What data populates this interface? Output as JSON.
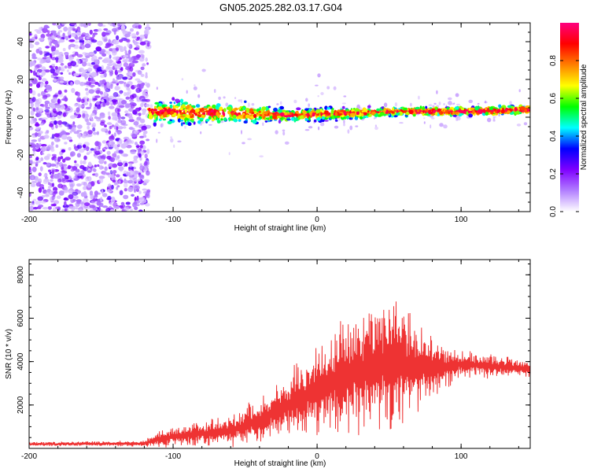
{
  "title": "GN05.2025.282.03.17.G04",
  "chart_data": [
    {
      "type": "heatmap",
      "name": "spectrogram",
      "xlabel": "Height of straight line (km)",
      "ylabel": "Frequency (Hz)",
      "xlim": [
        -200,
        148
      ],
      "ylim": [
        -50,
        50
      ],
      "xticks": [
        -200,
        -100,
        0,
        100
      ],
      "yticks": [
        -40,
        -20,
        0,
        20,
        40
      ],
      "xticklabels": [
        "-200",
        "-100",
        "0",
        "100"
      ],
      "yticklabels": [
        "-40",
        "-20",
        "0",
        "20",
        "40"
      ],
      "colorbar": {
        "label": "Normalized spectral amplitude",
        "range": [
          0,
          1
        ],
        "ticks": [
          0.0,
          0.2,
          0.4,
          0.6,
          0.8
        ],
        "ticklabels": [
          "0.0",
          "0.2",
          "0.4",
          "0.6",
          "0.8"
        ],
        "colors": [
          "#ffffff",
          "#b27fff",
          "#7f00ff",
          "#0000ff",
          "#00ffff",
          "#00ff00",
          "#ffff00",
          "#ff7f00",
          "#ff0000",
          "#ff007f"
        ]
      },
      "regions": [
        {
          "description": "noise",
          "x": [
            -200,
            -117
          ],
          "freq": [
            -50,
            50
          ],
          "amplitude": 0.1
        },
        {
          "description": "signal band",
          "x": [
            -117,
            148
          ],
          "freq_center": [
            3,
            2,
            1,
            2,
            3,
            3,
            4
          ],
          "freq_center_x": [
            -117,
            -50,
            -20,
            20,
            60,
            100,
            148
          ],
          "half_width_hz": [
            6,
            5,
            3,
            3,
            2,
            2,
            2
          ]
        }
      ]
    },
    {
      "type": "line",
      "name": "snr",
      "xlabel": "Height of straight line (km)",
      "ylabel": "SNR (10 * v/v)",
      "xlim": [
        -200,
        148
      ],
      "ylim": [
        0,
        8700
      ],
      "xticks": [
        -200,
        -100,
        0,
        100
      ],
      "yticks": [
        2000,
        4000,
        6000,
        8000
      ],
      "xticklabels": [
        "-200",
        "-100",
        "0",
        "100"
      ],
      "yticklabels": [
        "2000",
        "4000",
        "6000",
        "8000"
      ],
      "color": "#ee3333",
      "envelope": {
        "x": [
          -200,
          -120,
          -110,
          -80,
          -60,
          -40,
          -20,
          0,
          20,
          40,
          50,
          60,
          80,
          100,
          120,
          140,
          148
        ],
        "mean": [
          200,
          220,
          450,
          700,
          800,
          1300,
          2000,
          2700,
          3300,
          3800,
          4000,
          3800,
          3700,
          3900,
          3800,
          3700,
          3600
        ],
        "amplitude": [
          100,
          150,
          500,
          600,
          800,
          1200,
          1700,
          2300,
          3000,
          3500,
          4000,
          3000,
          1500,
          700,
          600,
          500,
          400
        ]
      }
    }
  ]
}
